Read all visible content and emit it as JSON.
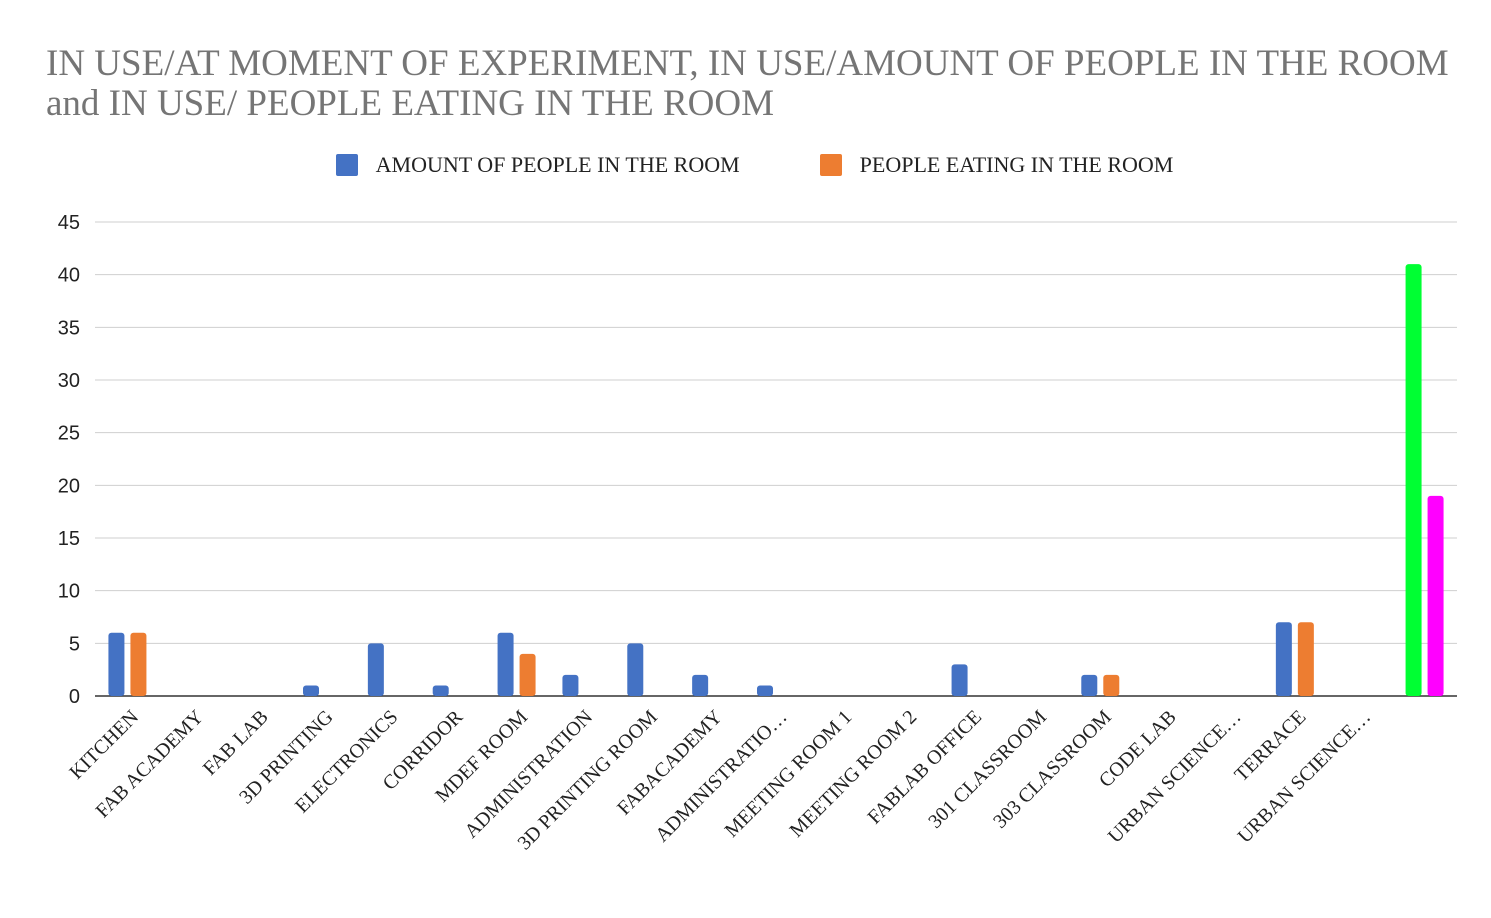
{
  "chart_data": {
    "type": "bar",
    "title": "IN USE/AT MOMENT OF EXPERIMENT, IN USE/AMOUNT OF PEOPLE IN THE ROOM and IN USE/ PEOPLE EATING IN THE ROOM",
    "categories": [
      "KITCHEN",
      "FAB ACADEMY",
      "FAB LAB",
      "3D PRINTING",
      "ELECTRONICS",
      "CORRIDOR",
      "MDEF ROOM",
      "ADMINISTRATION",
      "3D PRINTING ROOM",
      "FABACADEMY",
      "ADMINISTRATIO…",
      "MEETING ROOM 1",
      "MEETING ROOM 2",
      "FABLAB OFFICE",
      "301 CLASSROOM",
      "303 CLASSROOM",
      "CODE LAB",
      "URBAN SCIENCE…",
      "TERRACE",
      "URBAN SCIENCE…",
      ""
    ],
    "series": [
      {
        "name": "AMOUNT OF PEOPLE IN THE ROOM",
        "color": "#4472c4",
        "values": [
          6,
          0,
          0,
          1,
          5,
          1,
          6,
          2,
          5,
          2,
          1,
          0,
          0,
          3,
          0,
          2,
          0,
          0,
          7,
          0,
          0
        ]
      },
      {
        "name": "PEOPLE EATING IN THE ROOM",
        "color": "#ed7d31",
        "values": [
          6,
          0,
          0,
          0,
          0,
          0,
          4,
          0,
          0,
          0,
          0,
          0,
          0,
          0,
          0,
          2,
          0,
          0,
          7,
          0,
          0
        ]
      }
    ],
    "extra_bars": [
      {
        "category_index": 20,
        "slot": 0,
        "value": 41,
        "color": "#00ff33"
      },
      {
        "category_index": 20,
        "slot": 1,
        "value": 19,
        "color": "#ff00ff"
      }
    ],
    "yticks": [
      0,
      5,
      10,
      15,
      20,
      25,
      30,
      35,
      40,
      45
    ],
    "ylim": [
      0,
      45
    ],
    "xlabel": "",
    "ylabel": "",
    "grid": true,
    "legend": "top-center"
  }
}
